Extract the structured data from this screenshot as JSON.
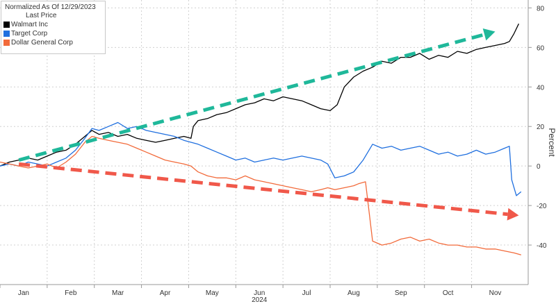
{
  "chart_data": {
    "type": "line",
    "title": "Normalized As Of 12/29/2023",
    "subtitle": "Last Price",
    "ylabel": "Percent",
    "xlabel": "2024",
    "ylim": [
      -60,
      84
    ],
    "yticks": [
      -40,
      -20,
      0,
      20,
      40,
      60,
      80
    ],
    "xlim": [
      0,
      11.2
    ],
    "month_labels": [
      "Jan",
      "Feb",
      "Mar",
      "Apr",
      "May",
      "Jun",
      "Jul",
      "Aug",
      "Sep",
      "Oct",
      "Nov"
    ],
    "grid": true,
    "legend_position": "top-left",
    "series": [
      {
        "name": "Walmart Inc",
        "color": "#000000",
        "x": [
          0.0,
          0.2,
          0.4,
          0.6,
          0.8,
          1.0,
          1.2,
          1.4,
          1.6,
          1.8,
          1.95,
          2.1,
          2.3,
          2.5,
          2.7,
          2.9,
          3.1,
          3.3,
          3.5,
          3.7,
          3.9,
          4.05,
          4.1,
          4.2,
          4.4,
          4.6,
          4.8,
          5.0,
          5.2,
          5.4,
          5.6,
          5.8,
          6.0,
          6.2,
          6.4,
          6.6,
          6.8,
          7.0,
          7.15,
          7.3,
          7.5,
          7.7,
          7.9,
          8.1,
          8.3,
          8.5,
          8.7,
          8.9,
          9.1,
          9.3,
          9.5,
          9.7,
          9.9,
          10.1,
          10.3,
          10.5,
          10.7,
          10.8,
          10.9,
          11.0
        ],
        "values": [
          0,
          2,
          3,
          4,
          3,
          5,
          7,
          8,
          11,
          15,
          18,
          16,
          17,
          15,
          16,
          14,
          13,
          12,
          13,
          14,
          15,
          14,
          20,
          23,
          24,
          26,
          27,
          29,
          31,
          32,
          34,
          33,
          35,
          34,
          33,
          31,
          29,
          28,
          31,
          40,
          45,
          48,
          50,
          53,
          52,
          55,
          55,
          57,
          54,
          56,
          55,
          58,
          57,
          59,
          60,
          61,
          62,
          63,
          67,
          72
        ]
      },
      {
        "name": "Target Corp",
        "color": "#1f6fdf",
        "x": [
          0.0,
          0.2,
          0.4,
          0.6,
          0.8,
          1.0,
          1.2,
          1.4,
          1.6,
          1.8,
          1.95,
          2.1,
          2.3,
          2.5,
          2.7,
          2.9,
          3.1,
          3.3,
          3.5,
          3.7,
          3.9,
          4.05,
          4.2,
          4.4,
          4.6,
          4.8,
          5.0,
          5.2,
          5.4,
          5.6,
          5.8,
          6.0,
          6.2,
          6.4,
          6.6,
          6.8,
          6.95,
          7.1,
          7.3,
          7.5,
          7.7,
          7.9,
          8.1,
          8.3,
          8.5,
          8.7,
          8.9,
          9.1,
          9.3,
          9.5,
          9.7,
          9.9,
          10.1,
          10.3,
          10.5,
          10.7,
          10.8,
          10.85,
          10.95,
          11.05
        ],
        "values": [
          0,
          1,
          0,
          2,
          1,
          0,
          2,
          4,
          8,
          14,
          19,
          18,
          20,
          22,
          19,
          20,
          18,
          17,
          16,
          15,
          13,
          12,
          11,
          9,
          7,
          5,
          3,
          4,
          2,
          3,
          4,
          3,
          4,
          5,
          4,
          3,
          1,
          -6,
          -5,
          -3,
          3,
          11,
          9,
          10,
          8,
          9,
          10,
          8,
          6,
          7,
          5,
          6,
          8,
          6,
          7,
          9,
          10,
          -7,
          -15,
          -13
        ]
      },
      {
        "name": "Dollar General Corp",
        "color": "#f26a3a",
        "x": [
          0.0,
          0.2,
          0.4,
          0.6,
          0.8,
          1.0,
          1.2,
          1.4,
          1.6,
          1.8,
          1.95,
          2.1,
          2.3,
          2.5,
          2.7,
          2.9,
          3.1,
          3.3,
          3.5,
          3.7,
          3.9,
          4.05,
          4.2,
          4.4,
          4.6,
          4.8,
          5.0,
          5.2,
          5.4,
          5.6,
          5.8,
          6.0,
          6.2,
          6.4,
          6.6,
          6.8,
          6.95,
          7.1,
          7.3,
          7.5,
          7.6,
          7.75,
          7.9,
          8.1,
          8.3,
          8.5,
          8.7,
          8.9,
          9.1,
          9.3,
          9.5,
          9.7,
          9.9,
          10.1,
          10.3,
          10.5,
          10.7,
          10.9,
          11.05
        ],
        "values": [
          2,
          1,
          0,
          -1,
          0,
          1,
          -1,
          2,
          6,
          12,
          15,
          14,
          13,
          12,
          11,
          9,
          7,
          5,
          3,
          2,
          1,
          0,
          -3,
          -5,
          -6,
          -6,
          -7,
          -5,
          -7,
          -8,
          -9,
          -10,
          -11,
          -12,
          -13,
          -12,
          -11,
          -12,
          -11,
          -10,
          -9,
          -8,
          -38,
          -40,
          -39,
          -37,
          -36,
          -38,
          -37,
          -39,
          -40,
          -40,
          -41,
          -41,
          -42,
          -42,
          -43,
          -44,
          -45
        ]
      }
    ],
    "annotations": [
      {
        "type": "arrow",
        "color": "#1fb89a",
        "from": [
          0.4,
          3
        ],
        "to": [
          10.5,
          68
        ]
      },
      {
        "type": "arrow",
        "color": "#f0584a",
        "from": [
          0.4,
          1
        ],
        "to": [
          11.0,
          -25
        ]
      }
    ]
  }
}
